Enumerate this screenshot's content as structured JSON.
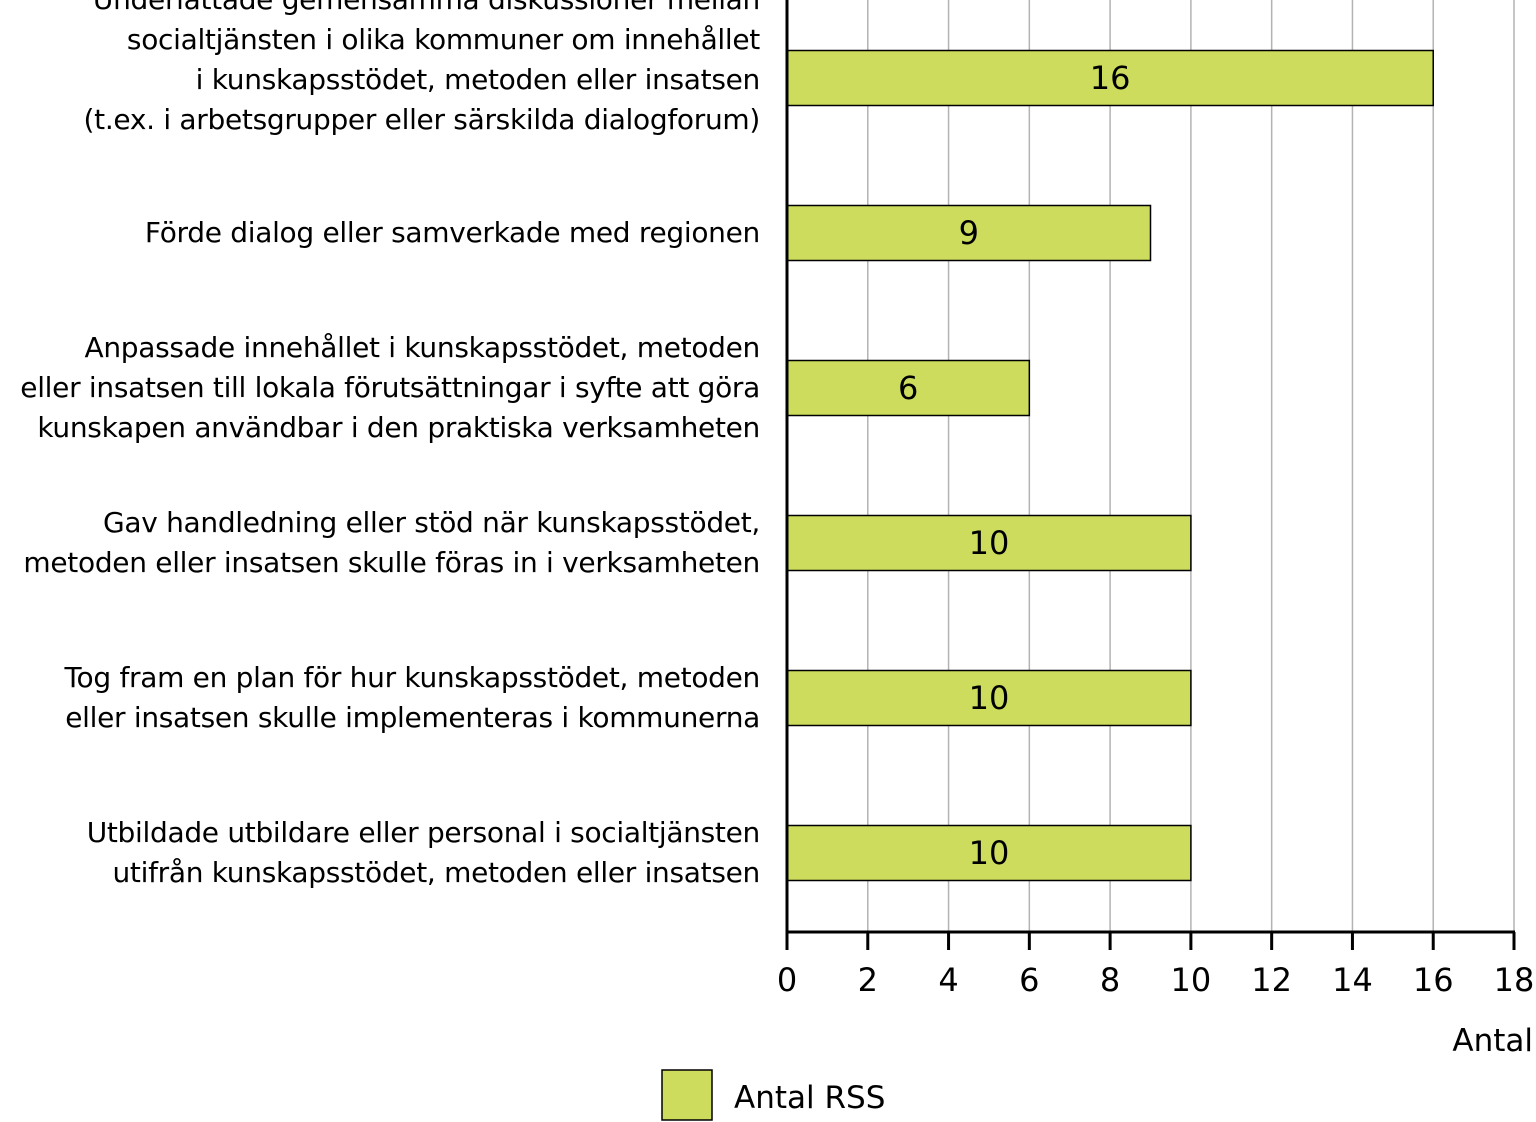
{
  "chart_data": {
    "type": "bar",
    "orientation": "horizontal",
    "categories": [
      [
        "Underlättade gemensamma diskussioner mellan",
        "socialtjänsten i olika kommuner om innehållet",
        "i kunskapsstödet, metoden eller insatsen",
        "(t.ex. i arbetsgrupper eller särskilda dialogforum)"
      ],
      [
        "Förde dialog eller samverkade med regionen"
      ],
      [
        "Anpassade innehållet i kunskapsstödet, metoden",
        "eller insatsen till lokala förutsättningar i syfte att göra",
        "kunskapen användbar i den praktiska verksamheten"
      ],
      [
        "Gav handledning eller stöd när kunskapsstödet,",
        "metoden eller insatsen skulle föras in i verksamheten"
      ],
      [
        "Tog fram en plan för hur kunskapsstödet, metoden",
        "eller insatsen skulle implementeras i kommunerna"
      ],
      [
        "Utbildade utbildare eller personal i socialtjänsten",
        "utifrån kunskapsstödet, metoden eller insatsen"
      ]
    ],
    "series": [
      {
        "name": "Antal RSS",
        "values": [
          16,
          9,
          6,
          10,
          10,
          10
        ],
        "color": "#cddc5d"
      }
    ],
    "xlabel": "Antal",
    "xlim": [
      0,
      18
    ],
    "xticks": [
      "0",
      "2",
      "4",
      "6",
      "8",
      "10",
      "12",
      "14",
      "16",
      "18"
    ],
    "grid": true,
    "legend": "bottom-center",
    "data_labels": [
      "16",
      "9",
      "6",
      "10",
      "10",
      "10"
    ]
  }
}
